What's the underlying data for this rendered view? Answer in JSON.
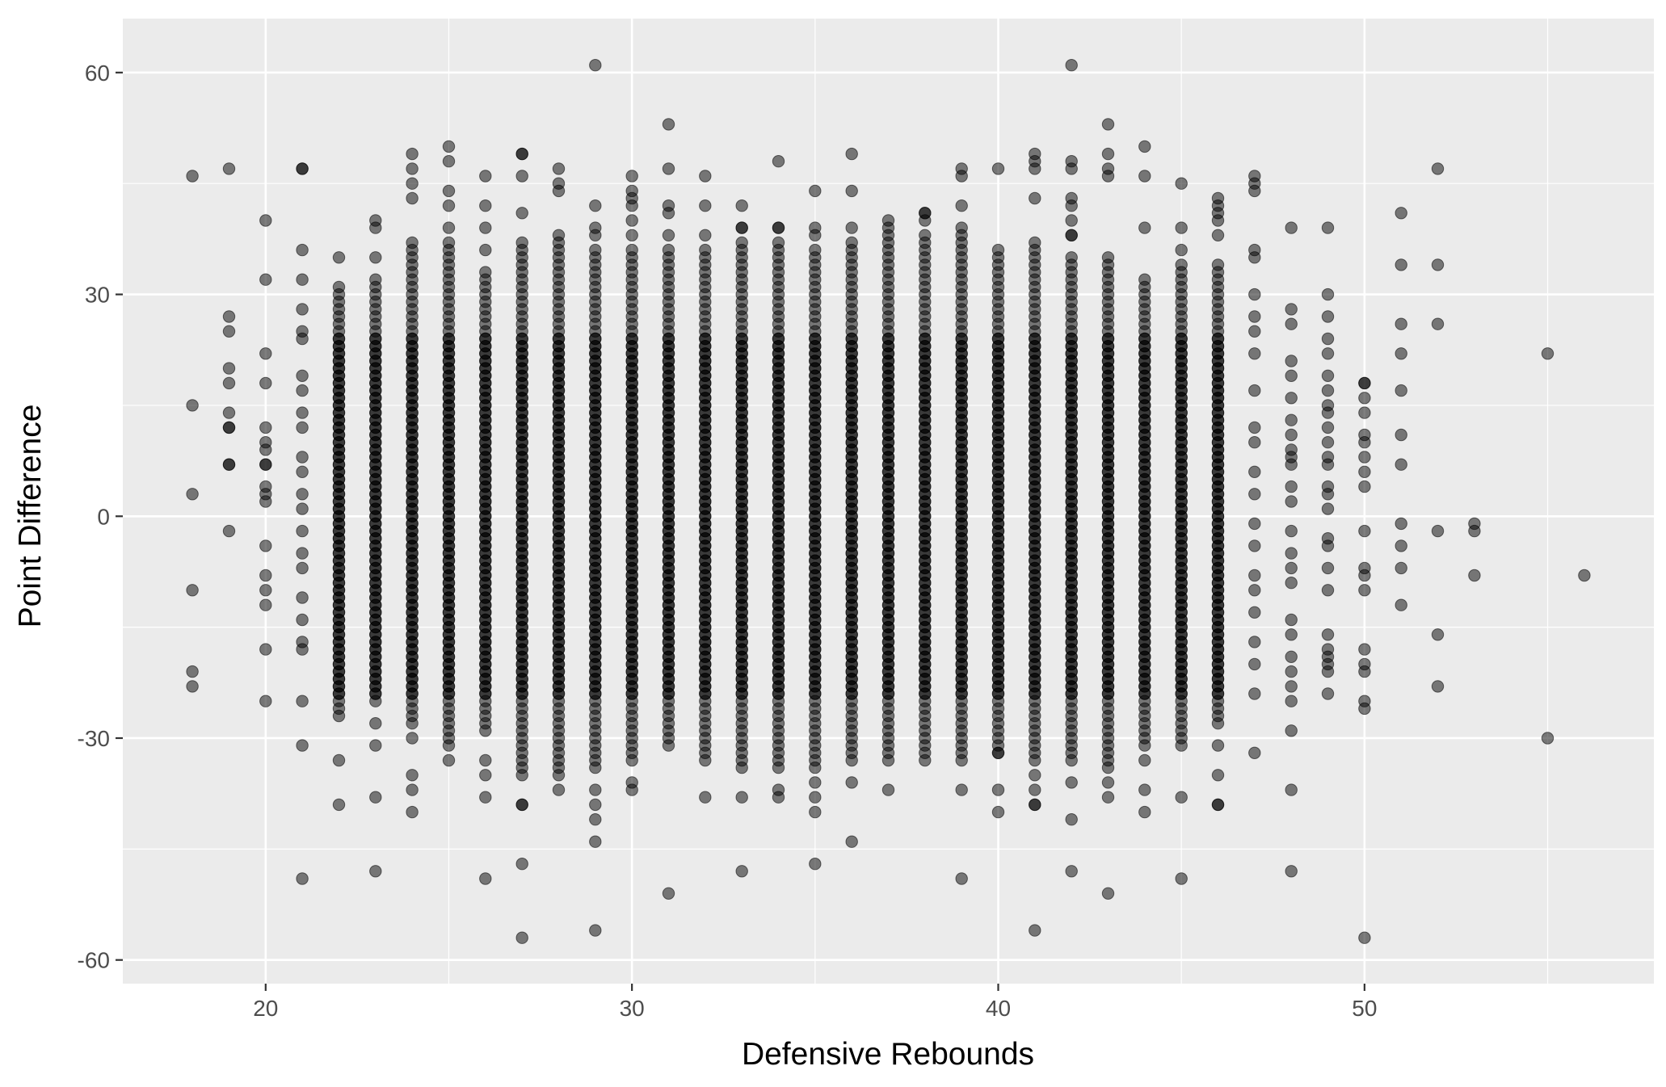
{
  "chart_data": {
    "type": "scatter",
    "xlabel": "Defensive Rebounds",
    "ylabel": "Point Difference",
    "xlim": [
      16.1,
      57.9
    ],
    "ylim": [
      -63.2,
      67.3
    ],
    "xticks": [
      20,
      30,
      40,
      50
    ],
    "yticks": [
      -60,
      -30,
      0,
      30,
      60
    ],
    "xtick_labels": [
      "20",
      "30",
      "40",
      "50"
    ],
    "ytick_labels": [
      "-60",
      "-30",
      "0",
      "30",
      "60"
    ],
    "grid": true,
    "legend": "none",
    "colors": {
      "panel": "#ebebeb",
      "grid_major": "#ffffff",
      "point_fill": "#000000",
      "point_opacity": 0.5
    },
    "outliers": [
      {
        "x": 18,
        "y": 46
      },
      {
        "x": 18,
        "y": 15
      },
      {
        "x": 18,
        "y": 3
      },
      {
        "x": 18,
        "y": -10
      },
      {
        "x": 18,
        "y": -21
      },
      {
        "x": 18,
        "y": -23
      },
      {
        "x": 19,
        "y": 47
      },
      {
        "x": 19,
        "y": 27
      },
      {
        "x": 19,
        "y": 25
      },
      {
        "x": 19,
        "y": 20
      },
      {
        "x": 19,
        "y": 18
      },
      {
        "x": 19,
        "y": 14
      },
      {
        "x": 19,
        "y": 12
      },
      {
        "x": 19,
        "y": 12
      },
      {
        "x": 19,
        "y": 7
      },
      {
        "x": 19,
        "y": 7
      },
      {
        "x": 19,
        "y": -2
      },
      {
        "x": 20,
        "y": 40
      },
      {
        "x": 20,
        "y": 32
      },
      {
        "x": 20,
        "y": 22
      },
      {
        "x": 20,
        "y": 18
      },
      {
        "x": 20,
        "y": 12
      },
      {
        "x": 20,
        "y": 10
      },
      {
        "x": 20,
        "y": 9
      },
      {
        "x": 20,
        "y": 7
      },
      {
        "x": 20,
        "y": 7
      },
      {
        "x": 20,
        "y": 4
      },
      {
        "x": 20,
        "y": 3
      },
      {
        "x": 20,
        "y": 2
      },
      {
        "x": 20,
        "y": -4
      },
      {
        "x": 20,
        "y": -8
      },
      {
        "x": 20,
        "y": -10
      },
      {
        "x": 20,
        "y": -12
      },
      {
        "x": 20,
        "y": -18
      },
      {
        "x": 20,
        "y": -25
      },
      {
        "x": 21,
        "y": 47
      },
      {
        "x": 21,
        "y": 47
      },
      {
        "x": 21,
        "y": 36
      },
      {
        "x": 21,
        "y": 32
      },
      {
        "x": 21,
        "y": 28
      },
      {
        "x": 21,
        "y": 25
      },
      {
        "x": 21,
        "y": 24
      },
      {
        "x": 21,
        "y": 19
      },
      {
        "x": 21,
        "y": 17
      },
      {
        "x": 21,
        "y": 14
      },
      {
        "x": 21,
        "y": 12
      },
      {
        "x": 21,
        "y": 8
      },
      {
        "x": 21,
        "y": 6
      },
      {
        "x": 21,
        "y": 3
      },
      {
        "x": 21,
        "y": 1
      },
      {
        "x": 21,
        "y": -2
      },
      {
        "x": 21,
        "y": -5
      },
      {
        "x": 21,
        "y": -7
      },
      {
        "x": 21,
        "y": -11
      },
      {
        "x": 21,
        "y": -14
      },
      {
        "x": 21,
        "y": -17
      },
      {
        "x": 21,
        "y": -18
      },
      {
        "x": 21,
        "y": -25
      },
      {
        "x": 21,
        "y": -31
      },
      {
        "x": 21,
        "y": -49
      },
      {
        "x": 22,
        "y": 35
      },
      {
        "x": 22,
        "y": -33
      },
      {
        "x": 22,
        "y": -39
      },
      {
        "x": 23,
        "y": 40
      },
      {
        "x": 23,
        "y": 39
      },
      {
        "x": 23,
        "y": 35
      },
      {
        "x": 23,
        "y": -28
      },
      {
        "x": 23,
        "y": -31
      },
      {
        "x": 23,
        "y": -38
      },
      {
        "x": 23,
        "y": -48
      },
      {
        "x": 24,
        "y": 49
      },
      {
        "x": 24,
        "y": 47
      },
      {
        "x": 24,
        "y": 45
      },
      {
        "x": 24,
        "y": 43
      },
      {
        "x": 24,
        "y": -30
      },
      {
        "x": 24,
        "y": -35
      },
      {
        "x": 24,
        "y": -37
      },
      {
        "x": 24,
        "y": -40
      },
      {
        "x": 25,
        "y": 50
      },
      {
        "x": 25,
        "y": 48
      },
      {
        "x": 25,
        "y": 44
      },
      {
        "x": 25,
        "y": 42
      },
      {
        "x": 25,
        "y": 39
      },
      {
        "x": 25,
        "y": -33
      },
      {
        "x": 26,
        "y": 46
      },
      {
        "x": 26,
        "y": 42
      },
      {
        "x": 26,
        "y": 39
      },
      {
        "x": 26,
        "y": 36
      },
      {
        "x": 26,
        "y": -33
      },
      {
        "x": 26,
        "y": -35
      },
      {
        "x": 26,
        "y": -38
      },
      {
        "x": 26,
        "y": -49
      },
      {
        "x": 27,
        "y": 49
      },
      {
        "x": 27,
        "y": 49
      },
      {
        "x": 27,
        "y": 46
      },
      {
        "x": 27,
        "y": 41
      },
      {
        "x": 27,
        "y": -39
      },
      {
        "x": 27,
        "y": -39
      },
      {
        "x": 27,
        "y": -47
      },
      {
        "x": 27,
        "y": -57
      },
      {
        "x": 28,
        "y": 47
      },
      {
        "x": 28,
        "y": 45
      },
      {
        "x": 28,
        "y": 44
      },
      {
        "x": 28,
        "y": -37
      },
      {
        "x": 29,
        "y": 61
      },
      {
        "x": 29,
        "y": 42
      },
      {
        "x": 29,
        "y": 39
      },
      {
        "x": 29,
        "y": 38
      },
      {
        "x": 29,
        "y": -37
      },
      {
        "x": 29,
        "y": -39
      },
      {
        "x": 29,
        "y": -41
      },
      {
        "x": 29,
        "y": -44
      },
      {
        "x": 29,
        "y": -56
      },
      {
        "x": 30,
        "y": 46
      },
      {
        "x": 30,
        "y": 44
      },
      {
        "x": 30,
        "y": 43
      },
      {
        "x": 30,
        "y": 42
      },
      {
        "x": 30,
        "y": 40
      },
      {
        "x": 30,
        "y": 38
      },
      {
        "x": 30,
        "y": -36
      },
      {
        "x": 30,
        "y": -37
      },
      {
        "x": 31,
        "y": 53
      },
      {
        "x": 31,
        "y": 47
      },
      {
        "x": 31,
        "y": 42
      },
      {
        "x": 31,
        "y": 41
      },
      {
        "x": 31,
        "y": 38
      },
      {
        "x": 31,
        "y": -51
      },
      {
        "x": 32,
        "y": 46
      },
      {
        "x": 32,
        "y": 42
      },
      {
        "x": 32,
        "y": 38
      },
      {
        "x": 32,
        "y": -38
      },
      {
        "x": 33,
        "y": 42
      },
      {
        "x": 33,
        "y": 39
      },
      {
        "x": 33,
        "y": 39
      },
      {
        "x": 33,
        "y": -38
      },
      {
        "x": 33,
        "y": -48
      },
      {
        "x": 34,
        "y": 48
      },
      {
        "x": 34,
        "y": 39
      },
      {
        "x": 34,
        "y": 39
      },
      {
        "x": 34,
        "y": -37
      },
      {
        "x": 34,
        "y": -38
      },
      {
        "x": 35,
        "y": 44
      },
      {
        "x": 35,
        "y": 39
      },
      {
        "x": 35,
        "y": 38
      },
      {
        "x": 35,
        "y": -36
      },
      {
        "x": 35,
        "y": -38
      },
      {
        "x": 35,
        "y": -40
      },
      {
        "x": 35,
        "y": -47
      },
      {
        "x": 36,
        "y": 49
      },
      {
        "x": 36,
        "y": 44
      },
      {
        "x": 36,
        "y": 39
      },
      {
        "x": 36,
        "y": -36
      },
      {
        "x": 36,
        "y": -44
      },
      {
        "x": 37,
        "y": 40
      },
      {
        "x": 37,
        "y": 39
      },
      {
        "x": 37,
        "y": 38
      },
      {
        "x": 37,
        "y": -37
      },
      {
        "x": 38,
        "y": 41
      },
      {
        "x": 38,
        "y": 41
      },
      {
        "x": 38,
        "y": 40
      },
      {
        "x": 38,
        "y": 38
      },
      {
        "x": 39,
        "y": 47
      },
      {
        "x": 39,
        "y": 46
      },
      {
        "x": 39,
        "y": 42
      },
      {
        "x": 39,
        "y": 39
      },
      {
        "x": 39,
        "y": 38
      },
      {
        "x": 39,
        "y": -33
      },
      {
        "x": 39,
        "y": -37
      },
      {
        "x": 39,
        "y": -49
      },
      {
        "x": 40,
        "y": 47
      },
      {
        "x": 40,
        "y": 36
      },
      {
        "x": 40,
        "y": 35
      },
      {
        "x": 40,
        "y": -32
      },
      {
        "x": 40,
        "y": -37
      },
      {
        "x": 40,
        "y": -40
      },
      {
        "x": 41,
        "y": 49
      },
      {
        "x": 41,
        "y": 48
      },
      {
        "x": 41,
        "y": 47
      },
      {
        "x": 41,
        "y": 43
      },
      {
        "x": 41,
        "y": 37
      },
      {
        "x": 41,
        "y": 36
      },
      {
        "x": 41,
        "y": 35
      },
      {
        "x": 41,
        "y": -35
      },
      {
        "x": 41,
        "y": -37
      },
      {
        "x": 41,
        "y": -39
      },
      {
        "x": 41,
        "y": -39
      },
      {
        "x": 41,
        "y": -56
      },
      {
        "x": 42,
        "y": 61
      },
      {
        "x": 42,
        "y": 48
      },
      {
        "x": 42,
        "y": 47
      },
      {
        "x": 42,
        "y": 43
      },
      {
        "x": 42,
        "y": 42
      },
      {
        "x": 42,
        "y": 40
      },
      {
        "x": 42,
        "y": 38
      },
      {
        "x": 42,
        "y": 38
      },
      {
        "x": 42,
        "y": 35
      },
      {
        "x": 42,
        "y": -36
      },
      {
        "x": 42,
        "y": -41
      },
      {
        "x": 42,
        "y": -48
      },
      {
        "x": 43,
        "y": 53
      },
      {
        "x": 43,
        "y": 49
      },
      {
        "x": 43,
        "y": 47
      },
      {
        "x": 43,
        "y": 46
      },
      {
        "x": 43,
        "y": 35
      },
      {
        "x": 43,
        "y": -36
      },
      {
        "x": 43,
        "y": -38
      },
      {
        "x": 43,
        "y": -51
      },
      {
        "x": 44,
        "y": 50
      },
      {
        "x": 44,
        "y": 46
      },
      {
        "x": 44,
        "y": 39
      },
      {
        "x": 44,
        "y": -33
      },
      {
        "x": 44,
        "y": -37
      },
      {
        "x": 44,
        "y": -40
      },
      {
        "x": 45,
        "y": 45
      },
      {
        "x": 45,
        "y": 39
      },
      {
        "x": 45,
        "y": 36
      },
      {
        "x": 45,
        "y": -31
      },
      {
        "x": 45,
        "y": -38
      },
      {
        "x": 45,
        "y": -49
      },
      {
        "x": 46,
        "y": 43
      },
      {
        "x": 46,
        "y": 42
      },
      {
        "x": 46,
        "y": 41
      },
      {
        "x": 46,
        "y": 40
      },
      {
        "x": 46,
        "y": 38
      },
      {
        "x": 46,
        "y": -31
      },
      {
        "x": 46,
        "y": -35
      },
      {
        "x": 46,
        "y": -39
      },
      {
        "x": 46,
        "y": -39
      },
      {
        "x": 47,
        "y": 46
      },
      {
        "x": 47,
        "y": 45
      },
      {
        "x": 47,
        "y": 44
      },
      {
        "x": 47,
        "y": 36
      },
      {
        "x": 47,
        "y": 35
      },
      {
        "x": 47,
        "y": 30
      },
      {
        "x": 47,
        "y": 27
      },
      {
        "x": 47,
        "y": 25
      },
      {
        "x": 47,
        "y": 22
      },
      {
        "x": 47,
        "y": 17
      },
      {
        "x": 47,
        "y": 12
      },
      {
        "x": 47,
        "y": 10
      },
      {
        "x": 47,
        "y": 6
      },
      {
        "x": 47,
        "y": 3
      },
      {
        "x": 47,
        "y": -1
      },
      {
        "x": 47,
        "y": -4
      },
      {
        "x": 47,
        "y": -8
      },
      {
        "x": 47,
        "y": -10
      },
      {
        "x": 47,
        "y": -13
      },
      {
        "x": 47,
        "y": -17
      },
      {
        "x": 47,
        "y": -20
      },
      {
        "x": 47,
        "y": -24
      },
      {
        "x": 47,
        "y": -32
      },
      {
        "x": 48,
        "y": 39
      },
      {
        "x": 48,
        "y": 28
      },
      {
        "x": 48,
        "y": 26
      },
      {
        "x": 48,
        "y": 21
      },
      {
        "x": 48,
        "y": 19
      },
      {
        "x": 48,
        "y": 16
      },
      {
        "x": 48,
        "y": 13
      },
      {
        "x": 48,
        "y": 11
      },
      {
        "x": 48,
        "y": 9
      },
      {
        "x": 48,
        "y": 8
      },
      {
        "x": 48,
        "y": 7
      },
      {
        "x": 48,
        "y": 4
      },
      {
        "x": 48,
        "y": 2
      },
      {
        "x": 48,
        "y": -2
      },
      {
        "x": 48,
        "y": -5
      },
      {
        "x": 48,
        "y": -7
      },
      {
        "x": 48,
        "y": -9
      },
      {
        "x": 48,
        "y": -14
      },
      {
        "x": 48,
        "y": -16
      },
      {
        "x": 48,
        "y": -19
      },
      {
        "x": 48,
        "y": -21
      },
      {
        "x": 48,
        "y": -23
      },
      {
        "x": 48,
        "y": -25
      },
      {
        "x": 48,
        "y": -29
      },
      {
        "x": 48,
        "y": -37
      },
      {
        "x": 48,
        "y": -48
      },
      {
        "x": 49,
        "y": 39
      },
      {
        "x": 49,
        "y": 30
      },
      {
        "x": 49,
        "y": 27
      },
      {
        "x": 49,
        "y": 24
      },
      {
        "x": 49,
        "y": 22
      },
      {
        "x": 49,
        "y": 19
      },
      {
        "x": 49,
        "y": 17
      },
      {
        "x": 49,
        "y": 15
      },
      {
        "x": 49,
        "y": 14
      },
      {
        "x": 49,
        "y": 12
      },
      {
        "x": 49,
        "y": 10
      },
      {
        "x": 49,
        "y": 8
      },
      {
        "x": 49,
        "y": 7
      },
      {
        "x": 49,
        "y": 4
      },
      {
        "x": 49,
        "y": 3
      },
      {
        "x": 49,
        "y": 1
      },
      {
        "x": 49,
        "y": -3
      },
      {
        "x": 49,
        "y": -4
      },
      {
        "x": 49,
        "y": -7
      },
      {
        "x": 49,
        "y": -10
      },
      {
        "x": 49,
        "y": -16
      },
      {
        "x": 49,
        "y": -18
      },
      {
        "x": 49,
        "y": -19
      },
      {
        "x": 49,
        "y": -20
      },
      {
        "x": 49,
        "y": -21
      },
      {
        "x": 49,
        "y": -24
      },
      {
        "x": 50,
        "y": 18
      },
      {
        "x": 50,
        "y": 18
      },
      {
        "x": 50,
        "y": 16
      },
      {
        "x": 50,
        "y": 14
      },
      {
        "x": 50,
        "y": 11
      },
      {
        "x": 50,
        "y": 10
      },
      {
        "x": 50,
        "y": 8
      },
      {
        "x": 50,
        "y": 6
      },
      {
        "x": 50,
        "y": 4
      },
      {
        "x": 50,
        "y": -2
      },
      {
        "x": 50,
        "y": -7
      },
      {
        "x": 50,
        "y": -8
      },
      {
        "x": 50,
        "y": -10
      },
      {
        "x": 50,
        "y": -18
      },
      {
        "x": 50,
        "y": -20
      },
      {
        "x": 50,
        "y": -21
      },
      {
        "x": 50,
        "y": -25
      },
      {
        "x": 50,
        "y": -26
      },
      {
        "x": 50,
        "y": -57
      },
      {
        "x": 51,
        "y": 41
      },
      {
        "x": 51,
        "y": 34
      },
      {
        "x": 51,
        "y": 26
      },
      {
        "x": 51,
        "y": 22
      },
      {
        "x": 51,
        "y": 17
      },
      {
        "x": 51,
        "y": 11
      },
      {
        "x": 51,
        "y": 7
      },
      {
        "x": 51,
        "y": -1
      },
      {
        "x": 51,
        "y": -4
      },
      {
        "x": 51,
        "y": -7
      },
      {
        "x": 51,
        "y": -12
      },
      {
        "x": 52,
        "y": 47
      },
      {
        "x": 52,
        "y": 34
      },
      {
        "x": 52,
        "y": 26
      },
      {
        "x": 52,
        "y": -2
      },
      {
        "x": 52,
        "y": -16
      },
      {
        "x": 52,
        "y": -23
      },
      {
        "x": 53,
        "y": -1
      },
      {
        "x": 53,
        "y": -2
      },
      {
        "x": 53,
        "y": -8
      },
      {
        "x": 55,
        "y": 22
      },
      {
        "x": 55,
        "y": -30
      },
      {
        "x": 56,
        "y": -8
      }
    ],
    "dense_columns": [
      {
        "x": 22,
        "y_min": -27,
        "y_max": 31
      },
      {
        "x": 23,
        "y_min": -25,
        "y_max": 32
      },
      {
        "x": 24,
        "y_min": -28,
        "y_max": 37
      },
      {
        "x": 25,
        "y_min": -31,
        "y_max": 37
      },
      {
        "x": 26,
        "y_min": -29,
        "y_max": 33
      },
      {
        "x": 27,
        "y_min": -35,
        "y_max": 37
      },
      {
        "x": 28,
        "y_min": -35,
        "y_max": 38
      },
      {
        "x": 29,
        "y_min": -34,
        "y_max": 36
      },
      {
        "x": 30,
        "y_min": -33,
        "y_max": 36
      },
      {
        "x": 31,
        "y_min": -31,
        "y_max": 36
      },
      {
        "x": 32,
        "y_min": -33,
        "y_max": 36
      },
      {
        "x": 33,
        "y_min": -34,
        "y_max": 37
      },
      {
        "x": 34,
        "y_min": -34,
        "y_max": 37
      },
      {
        "x": 35,
        "y_min": -34,
        "y_max": 36
      },
      {
        "x": 36,
        "y_min": -33,
        "y_max": 37
      },
      {
        "x": 37,
        "y_min": -33,
        "y_max": 37
      },
      {
        "x": 38,
        "y_min": -33,
        "y_max": 37
      },
      {
        "x": 39,
        "y_min": -32,
        "y_max": 37
      },
      {
        "x": 40,
        "y_min": -32,
        "y_max": 34
      },
      {
        "x": 41,
        "y_min": -33,
        "y_max": 34
      },
      {
        "x": 42,
        "y_min": -33,
        "y_max": 34
      },
      {
        "x": 43,
        "y_min": -34,
        "y_max": 34
      },
      {
        "x": 44,
        "y_min": -31,
        "y_max": 32
      },
      {
        "x": 45,
        "y_min": -30,
        "y_max": 34
      },
      {
        "x": 46,
        "y_min": -28,
        "y_max": 34
      }
    ]
  }
}
